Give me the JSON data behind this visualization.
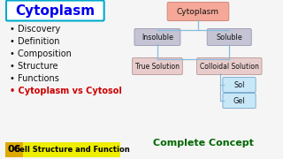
{
  "bg_color": "#f5f5f5",
  "left_panel": {
    "title": "Cytoplasm",
    "title_color": "#0000ee",
    "title_bg": "#ffffff",
    "title_border": "#00aacc",
    "bullets": [
      "Discovery",
      "Definition",
      "Composition",
      "Structure",
      "Functions"
    ],
    "bullet_color": "#111111",
    "last_bullet": "Cytoplasm vs Cytosol",
    "last_bullet_color": "#cc0000",
    "bottom_num": "06",
    "bottom_num_bg": "#ddaa00",
    "bottom_text": "Cell Structure and Function",
    "bottom_text_bg": "#eeee00",
    "bottom_text_color": "#000000"
  },
  "diagram": {
    "cytoplasm_box": {
      "label": "Cytoplasm",
      "color": "#f5a898",
      "border": "#d08878"
    },
    "insoluble_box": {
      "label": "Insoluble",
      "color": "#c4c4d4",
      "border": "#a0a0b8"
    },
    "soluble_box": {
      "label": "Soluble",
      "color": "#c4c4d4",
      "border": "#a0a0b8"
    },
    "true_solution_box": {
      "label": "True Solution",
      "color": "#e8cccc",
      "border": "#c0a0a0"
    },
    "colloidal_solution_box": {
      "label": "Colloidal Solution",
      "color": "#e8cccc",
      "border": "#c0a0a0"
    },
    "sol_box": {
      "label": "Sol",
      "color": "#c8e8f8",
      "border": "#80b0d0"
    },
    "gel_box": {
      "label": "Gel",
      "color": "#c8e8f8",
      "border": "#80b0d0"
    },
    "line_color": "#88bbdd"
  },
  "complete_concept": {
    "text": "Complete Concept",
    "color": "#006600"
  }
}
